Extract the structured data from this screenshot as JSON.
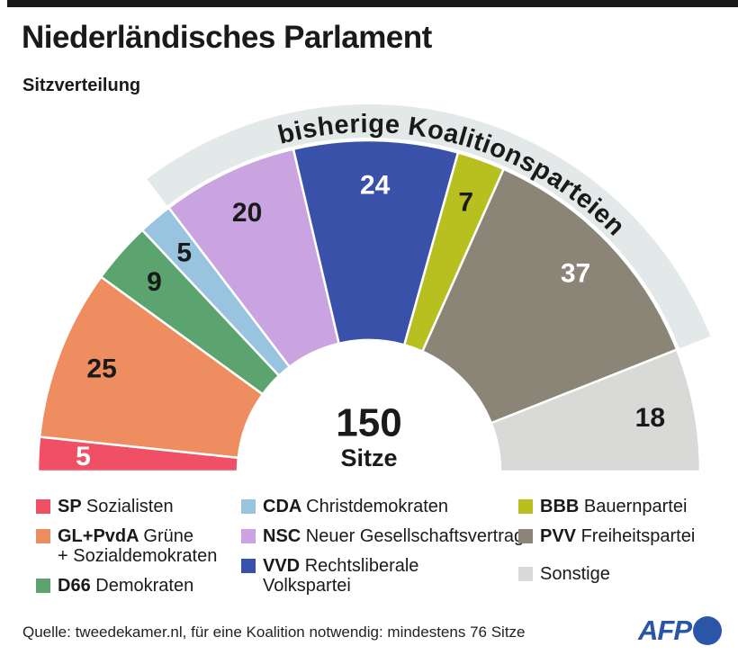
{
  "header": {
    "title": "Niederländisches Parlament",
    "subtitle": "Sitzverteilung"
  },
  "chart_data": {
    "type": "pie",
    "variant": "hemicycle-half-donut",
    "title": "Niederländisches Parlament",
    "subtitle": "Sitzverteilung",
    "total_seats": 150,
    "total_label": {
      "value": "150",
      "unit": "Sitze"
    },
    "arc_annotation": {
      "text": "bisherige Koalitionsparteien",
      "covers": [
        "NSC",
        "VVD",
        "BBB",
        "PVV"
      ],
      "band_color": "#e3e8e9"
    },
    "series": [
      {
        "party": "SP",
        "seats": 5,
        "color": "#ef5066",
        "label_color": "#ffffff"
      },
      {
        "party": "GL+PvdA",
        "seats": 25,
        "color": "#ee8d60",
        "label_color": "#1a1a1a"
      },
      {
        "party": "D66",
        "seats": 9,
        "color": "#5ba46f",
        "label_color": "#1a1a1a"
      },
      {
        "party": "CDA",
        "seats": 5,
        "color": "#99c4df",
        "label_color": "#1a1a1a"
      },
      {
        "party": "NSC",
        "seats": 20,
        "color": "#c9a4e1",
        "label_color": "#1a1a1a"
      },
      {
        "party": "VVD",
        "seats": 24,
        "color": "#3a51a9",
        "label_color": "#ffffff"
      },
      {
        "party": "BBB",
        "seats": 7,
        "color": "#b8c01f",
        "label_color": "#1a1a1a"
      },
      {
        "party": "PVV",
        "seats": 37,
        "color": "#8b8577",
        "label_color": "#ffffff"
      },
      {
        "party": "Sonstige",
        "seats": 18,
        "color": "#d9d9d8",
        "label_color": "#1a1a1a"
      }
    ]
  },
  "legend": {
    "columns": [
      {
        "items": [
          {
            "abbr": "SP",
            "lines": [
              "Sozialisten"
            ],
            "color": "#ef5066",
            "pushed": false
          },
          {
            "abbr": "GL+PvdA",
            "lines": [
              "Grüne",
              "+ Sozialdemokraten"
            ],
            "color": "#ee8d60",
            "pushed": false
          },
          {
            "abbr": "D66",
            "lines": [
              "Demokraten"
            ],
            "color": "#5ba46f",
            "pushed": false
          }
        ]
      },
      {
        "items": [
          {
            "abbr": "CDA",
            "lines": [
              "Christdemokraten"
            ],
            "color": "#99c4df",
            "pushed": false
          },
          {
            "abbr": "NSC",
            "lines": [
              "Neuer Gesellschaftsvertrag"
            ],
            "color": "#c9a4e1",
            "pushed": false
          },
          {
            "abbr": "VVD",
            "lines": [
              "Rechtsliberale",
              "Volkspartei"
            ],
            "color": "#3a51a9",
            "pushed": false
          }
        ]
      },
      {
        "items": [
          {
            "abbr": "BBB",
            "lines": [
              "Bauernpartei"
            ],
            "color": "#b8c01f",
            "pushed": false
          },
          {
            "abbr": "PVV",
            "lines": [
              "Freiheitspartei"
            ],
            "color": "#8b8577",
            "pushed": false
          },
          {
            "abbr": "",
            "lines": [
              "Sonstige"
            ],
            "color": "#d9d9d8",
            "pushed": true
          }
        ]
      }
    ]
  },
  "footer": {
    "source": "Quelle: tweedekamer.nl, für eine Koalition notwendig: mindestens 76 Sitze",
    "logo_text": "AFP",
    "brand_color": "#2b56a7"
  }
}
